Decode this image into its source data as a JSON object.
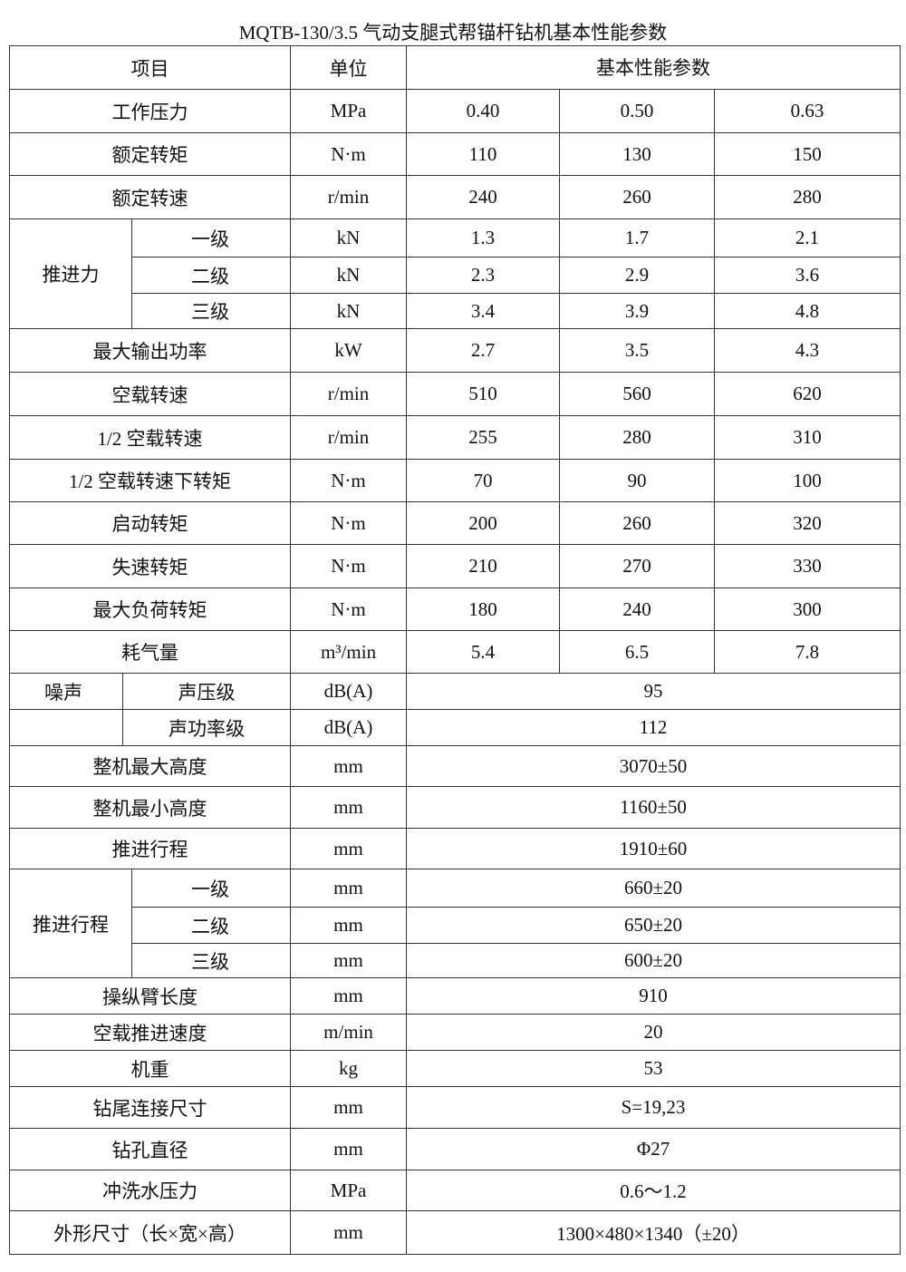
{
  "title": "MQTB-130/3.5 气动支腿式帮锚杆钻机基本性能参数",
  "header": {
    "item": "项目",
    "unit": "单位",
    "params": "基本性能参数"
  },
  "rows": [
    {
      "item": "工作压力",
      "unit": "MPa",
      "values": [
        "0.40",
        "0.50",
        "0.63"
      ]
    },
    {
      "item": "额定转矩",
      "unit": "N·m",
      "values": [
        "110",
        "130",
        "150"
      ]
    },
    {
      "item": "额定转速",
      "unit": "r/min",
      "values": [
        "240",
        "260",
        "280"
      ]
    },
    {
      "group": "推进力",
      "subitems": [
        {
          "item": "一级",
          "unit": "kN",
          "values": [
            "1.3",
            "1.7",
            "2.1"
          ]
        },
        {
          "item": "二级",
          "unit": "kN",
          "values": [
            "2.3",
            "2.9",
            "3.6"
          ]
        },
        {
          "item": "三级",
          "unit": "kN",
          "values": [
            "3.4",
            "3.9",
            "4.8"
          ]
        }
      ]
    },
    {
      "item": "最大输出功率",
      "unit": "kW",
      "values": [
        "2.7",
        "3.5",
        "4.3"
      ]
    },
    {
      "item": "空载转速",
      "unit": "r/min",
      "values": [
        "510",
        "560",
        "620"
      ]
    },
    {
      "item": "1/2 空载转速",
      "unit": "r/min",
      "values": [
        "255",
        "280",
        "310"
      ]
    },
    {
      "item": "1/2 空载转速下转矩",
      "unit": "N·m",
      "values": [
        "70",
        "90",
        "100"
      ]
    },
    {
      "item": "启动转矩",
      "unit": "N·m",
      "values": [
        "200",
        "260",
        "320"
      ]
    },
    {
      "item": "失速转矩",
      "unit": "N·m",
      "values": [
        "210",
        "270",
        "330"
      ]
    },
    {
      "item": "最大负荷转矩",
      "unit": "N·m",
      "values": [
        "180",
        "240",
        "300"
      ]
    },
    {
      "item": "耗气量",
      "unit": "m³/min",
      "values": [
        "5.4",
        "6.5",
        "7.8"
      ]
    },
    {
      "group": "噪声",
      "subitems": [
        {
          "item": "声压级",
          "unit": "dB(A)",
          "values": [
            "95"
          ]
        },
        {
          "item": "声功率级",
          "unit": "dB(A)",
          "values": [
            "112"
          ]
        }
      ]
    },
    {
      "item": "整机最大高度",
      "unit": "mm",
      "values": [
        "3070±50"
      ]
    },
    {
      "item": "整机最小高度",
      "unit": "mm",
      "values": [
        "1160±50"
      ]
    },
    {
      "item": "推进行程",
      "unit": "mm",
      "values": [
        "1910±60"
      ]
    },
    {
      "group": "推进行程",
      "subitems": [
        {
          "item": "一级",
          "unit": "mm",
          "values": [
            "660±20"
          ]
        },
        {
          "item": "二级",
          "unit": "mm",
          "values": [
            "650±20"
          ]
        },
        {
          "item": "三级",
          "unit": "mm",
          "values": [
            "600±20"
          ]
        }
      ]
    },
    {
      "item": "操纵臂长度",
      "unit": "mm",
      "values": [
        "910"
      ]
    },
    {
      "item": "空载推进速度",
      "unit": "m/min",
      "values": [
        "20"
      ]
    },
    {
      "item": "机重",
      "unit": "kg",
      "values": [
        "53"
      ]
    },
    {
      "item": "钻尾连接尺寸",
      "unit": "mm",
      "values": [
        "S=19,23"
      ]
    },
    {
      "item": "钻孔直径",
      "unit": "mm",
      "values": [
        "Φ27"
      ]
    },
    {
      "item": "冲洗水压力",
      "unit": "MPa",
      "values": [
        "0.6～1.2"
      ]
    },
    {
      "item": "外形尺寸（长×宽×高）",
      "unit": "mm",
      "values": [
        "1300×480×1340（±20）"
      ]
    }
  ]
}
